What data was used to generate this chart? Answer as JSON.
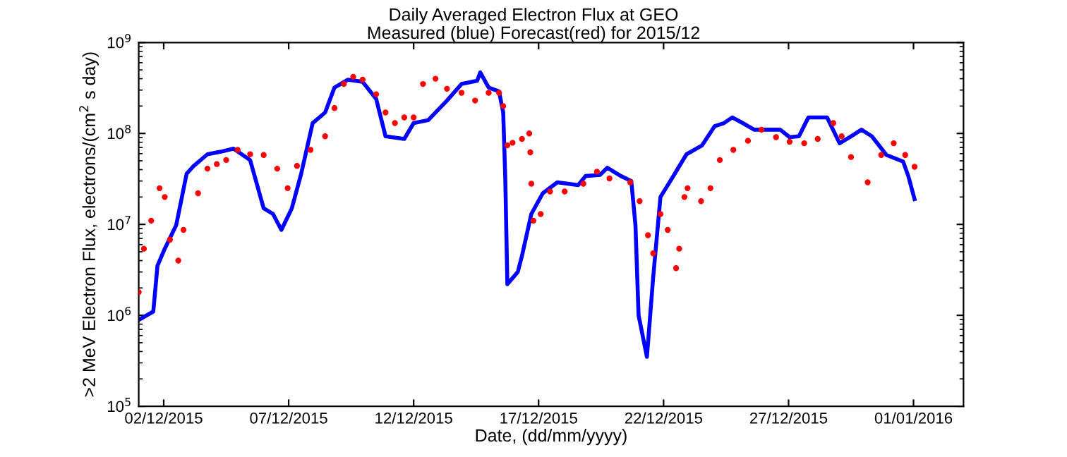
{
  "chart_data": {
    "type": "line",
    "title": "Daily Averaged Electron Flux at GEO",
    "subtitle": "Measured (blue) Forecast(red) for 2015/12",
    "xlabel": "Date, (dd/mm/yyyy)",
    "ylabel": ">2 MeV Electron Flux, electrons/(cm$^{2}$ s day)",
    "log": "y",
    "grid": false,
    "legend": false,
    "xlim": [
      "2015-12-01",
      "2016-01-03"
    ],
    "xticks": [
      {
        "value": "2015-12-02",
        "label": "02/12/2015"
      },
      {
        "value": "2015-12-07",
        "label": "07/12/2015"
      },
      {
        "value": "2015-12-12",
        "label": "12/12/2015"
      },
      {
        "value": "2015-12-17",
        "label": "17/12/2015"
      },
      {
        "value": "2015-12-22",
        "label": "22/12/2015"
      },
      {
        "value": "2015-12-27",
        "label": "27/12/2015"
      },
      {
        "value": "2016-01-01",
        "label": "01/01/2016"
      }
    ],
    "ylim": [
      100000,
      1000000000
    ],
    "yticks": [
      {
        "value": 100000,
        "label": "10$^{5}$"
      },
      {
        "value": 1000000,
        "label": "10$^{6}$"
      },
      {
        "value": 10000000,
        "label": "10$^{7}$"
      },
      {
        "value": 100000000,
        "label": "10$^{8}$"
      },
      {
        "value": 1000000000,
        "label": "10$^{9}$"
      }
    ],
    "series": [
      {
        "color": "#0000ff",
        "marker": "none",
        "line_style": "solid",
        "x": [
          "2015-12-01T00:00",
          "2015-12-01T14:00",
          "2015-12-01T18:00",
          "2015-12-02T01:00",
          "2015-12-02T12:00",
          "2015-12-02T22:00",
          "2015-12-03T04:00",
          "2015-12-03T18:00",
          "2015-12-04T07:00",
          "2015-12-04T19:00",
          "2015-12-05T11:00",
          "2015-12-06T00:00",
          "2015-12-06T09:00",
          "2015-12-06T17:00",
          "2015-12-07T03:00",
          "2015-12-07T12:00",
          "2015-12-07T23:00",
          "2015-12-08T11:00",
          "2015-12-08T20:00",
          "2015-12-09T09:00",
          "2015-12-09T23:00",
          "2015-12-10T12:00",
          "2015-12-10T21:00",
          "2015-12-11T15:00",
          "2015-12-12T00:00",
          "2015-12-12T14:00",
          "2015-12-13T08:00",
          "2015-12-13T22:00",
          "2015-12-14T13:00",
          "2015-12-14T16:00",
          "2015-12-15T00:00",
          "2015-12-15T10:00",
          "2015-12-15T14:00",
          "2015-12-15T16:00",
          "2015-12-15T18:00",
          "2015-12-16T04:00",
          "2015-12-16T08:00",
          "2015-12-16T17:00",
          "2015-12-17T04:00",
          "2015-12-17T18:00",
          "2015-12-18T14:00",
          "2015-12-18T21:00",
          "2015-12-19T11:00",
          "2015-12-19T18:00",
          "2015-12-20T07:00",
          "2015-12-20T17:00",
          "2015-12-20T21:00",
          "2015-12-21T00:00",
          "2015-12-21T08:00",
          "2015-12-21T14:00",
          "2015-12-21T21:00",
          "2015-12-22T08:00",
          "2015-12-22T22:00",
          "2015-12-23T13:00",
          "2015-12-24T01:00",
          "2015-12-24T10:00",
          "2015-12-24T18:00",
          "2015-12-25T04:00",
          "2015-12-25T15:00",
          "2015-12-26T16:00",
          "2015-12-27T01:00",
          "2015-12-27T10:00",
          "2015-12-27T19:00",
          "2015-12-28T13:00",
          "2015-12-29T01:00",
          "2015-12-29T12:00",
          "2015-12-29T22:00",
          "2015-12-30T08:00",
          "2015-12-30T22:00",
          "2015-12-31T14:00",
          "2015-12-31T19:00",
          "2016-01-01T01:00"
        ],
        "values": [
          890000.0,
          1100000.0,
          3500000.0,
          5400000.0,
          9800000.0,
          36000000.0,
          43000000.0,
          59000000.0,
          63000000.0,
          68000000.0,
          51000000.0,
          15000000.0,
          13000000.0,
          8700000.0,
          15000000.0,
          36000000.0,
          130000000.0,
          170000000.0,
          320000000.0,
          390000000.0,
          370000000.0,
          240000000.0,
          93000000.0,
          87000000.0,
          130000000.0,
          140000000.0,
          230000000.0,
          350000000.0,
          380000000.0,
          470000000.0,
          320000000.0,
          290000000.0,
          170000000.0,
          32000000.0,
          2200000.0,
          3000000.0,
          4500000.0,
          13000000.0,
          22000000.0,
          29000000.0,
          27000000.0,
          34000000.0,
          35000000.0,
          42000000.0,
          34000000.0,
          30000000.0,
          9800000.0,
          1000000.0,
          350000.0,
          2600000.0,
          20000000.0,
          32000000.0,
          59000000.0,
          74000000.0,
          120000000.0,
          130000000.0,
          150000000.0,
          130000000.0,
          110000000.0,
          110000000.0,
          91000000.0,
          93000000.0,
          150000000.0,
          150000000.0,
          78000000.0,
          93000000.0,
          110000000.0,
          93000000.0,
          58000000.0,
          49000000.0,
          34000000.0,
          19000000.0
        ]
      },
      {
        "type": "scatter",
        "color": "#ff0000",
        "marker": "circle",
        "x": [
          "2015-12-01T00:00",
          "2015-12-01T05:00",
          "2015-12-01T12:00",
          "2015-12-01T20:00",
          "2015-12-02T01:00",
          "2015-12-02T06:00",
          "2015-12-02T14:00",
          "2015-12-02T19:00",
          "2015-12-03T09:00",
          "2015-12-03T18:00",
          "2015-12-04T03:00",
          "2015-12-04T12:00",
          "2015-12-04T23:00",
          "2015-12-05T11:00",
          "2015-12-06T00:00",
          "2015-12-06T13:00",
          "2015-12-06T23:00",
          "2015-12-07T08:00",
          "2015-12-07T21:00",
          "2015-12-08T11:00",
          "2015-12-08T20:00",
          "2015-12-09T05:00",
          "2015-12-09T14:00",
          "2015-12-09T23:00",
          "2015-12-10T12:00",
          "2015-12-10T21:00",
          "2015-12-11T06:00",
          "2015-12-11T15:00",
          "2015-12-12T00:00",
          "2015-12-12T09:00",
          "2015-12-12T21:00",
          "2015-12-13T08:00",
          "2015-12-13T22:00",
          "2015-12-14T11:00",
          "2015-12-15T00:00",
          "2015-12-15T10:00",
          "2015-12-15T14:00",
          "2015-12-15T18:00",
          "2015-12-15T23:00",
          "2015-12-16T08:00",
          "2015-12-16T15:00",
          "2015-12-16T16:00",
          "2015-12-16T17:00",
          "2015-12-16T19:00",
          "2015-12-17T02:00",
          "2015-12-17T11:00",
          "2015-12-18T01:00",
          "2015-12-18T19:00",
          "2015-12-19T08:00",
          "2015-12-19T20:00",
          "2015-12-20T16:00",
          "2015-12-21T01:00",
          "2015-12-21T09:00",
          "2015-12-21T14:00",
          "2015-12-21T21:00",
          "2015-12-22T04:00",
          "2015-12-22T12:00",
          "2015-12-22T15:00",
          "2015-12-22T20:00",
          "2015-12-22T23:00",
          "2015-12-23T12:00",
          "2015-12-23T21:00",
          "2015-12-24T06:00",
          "2015-12-24T19:00",
          "2015-12-25T09:00",
          "2015-12-25T22:00",
          "2015-12-26T12:00",
          "2015-12-27T01:00",
          "2015-12-27T15:00",
          "2015-12-28T04:00",
          "2015-12-28T19:00",
          "2015-12-29T03:00",
          "2015-12-29T12:00",
          "2015-12-30T04:00",
          "2015-12-30T17:00",
          "2015-12-31T05:00",
          "2015-12-31T16:00",
          "2016-01-01T01:00"
        ],
        "values": [
          1800000.0,
          5400000.0,
          11000000.0,
          25000000.0,
          20000000.0,
          6800000.0,
          4000000.0,
          8700000.0,
          22000000.0,
          41000000.0,
          46000000.0,
          51000000.0,
          66000000.0,
          59000000.0,
          58000000.0,
          41000000.0,
          25000000.0,
          44000000.0,
          66000000.0,
          93000000.0,
          190000000.0,
          350000000.0,
          420000000.0,
          390000000.0,
          270000000.0,
          170000000.0,
          130000000.0,
          150000000.0,
          150000000.0,
          350000000.0,
          400000000.0,
          310000000.0,
          280000000.0,
          230000000.0,
          280000000.0,
          280000000.0,
          200000000.0,
          74000000.0,
          79000000.0,
          87000000.0,
          100000000.0,
          62000000.0,
          28000000.0,
          11000000.0,
          13000000.0,
          23000000.0,
          23000000.0,
          28000000.0,
          38000000.0,
          32000000.0,
          29000000.0,
          18000000.0,
          7600000.0,
          4800000.0,
          13000000.0,
          8700000.0,
          3300000.0,
          5400000.0,
          20000000.0,
          25000000.0,
          18000000.0,
          25000000.0,
          51000000.0,
          66000000.0,
          83000000.0,
          110000000.0,
          91000000.0,
          81000000.0,
          78000000.0,
          87000000.0,
          130000000.0,
          93000000.0,
          55000000.0,
          29000000.0,
          58000000.0,
          78000000.0,
          58000000.0,
          43000000.0
        ]
      }
    ]
  }
}
